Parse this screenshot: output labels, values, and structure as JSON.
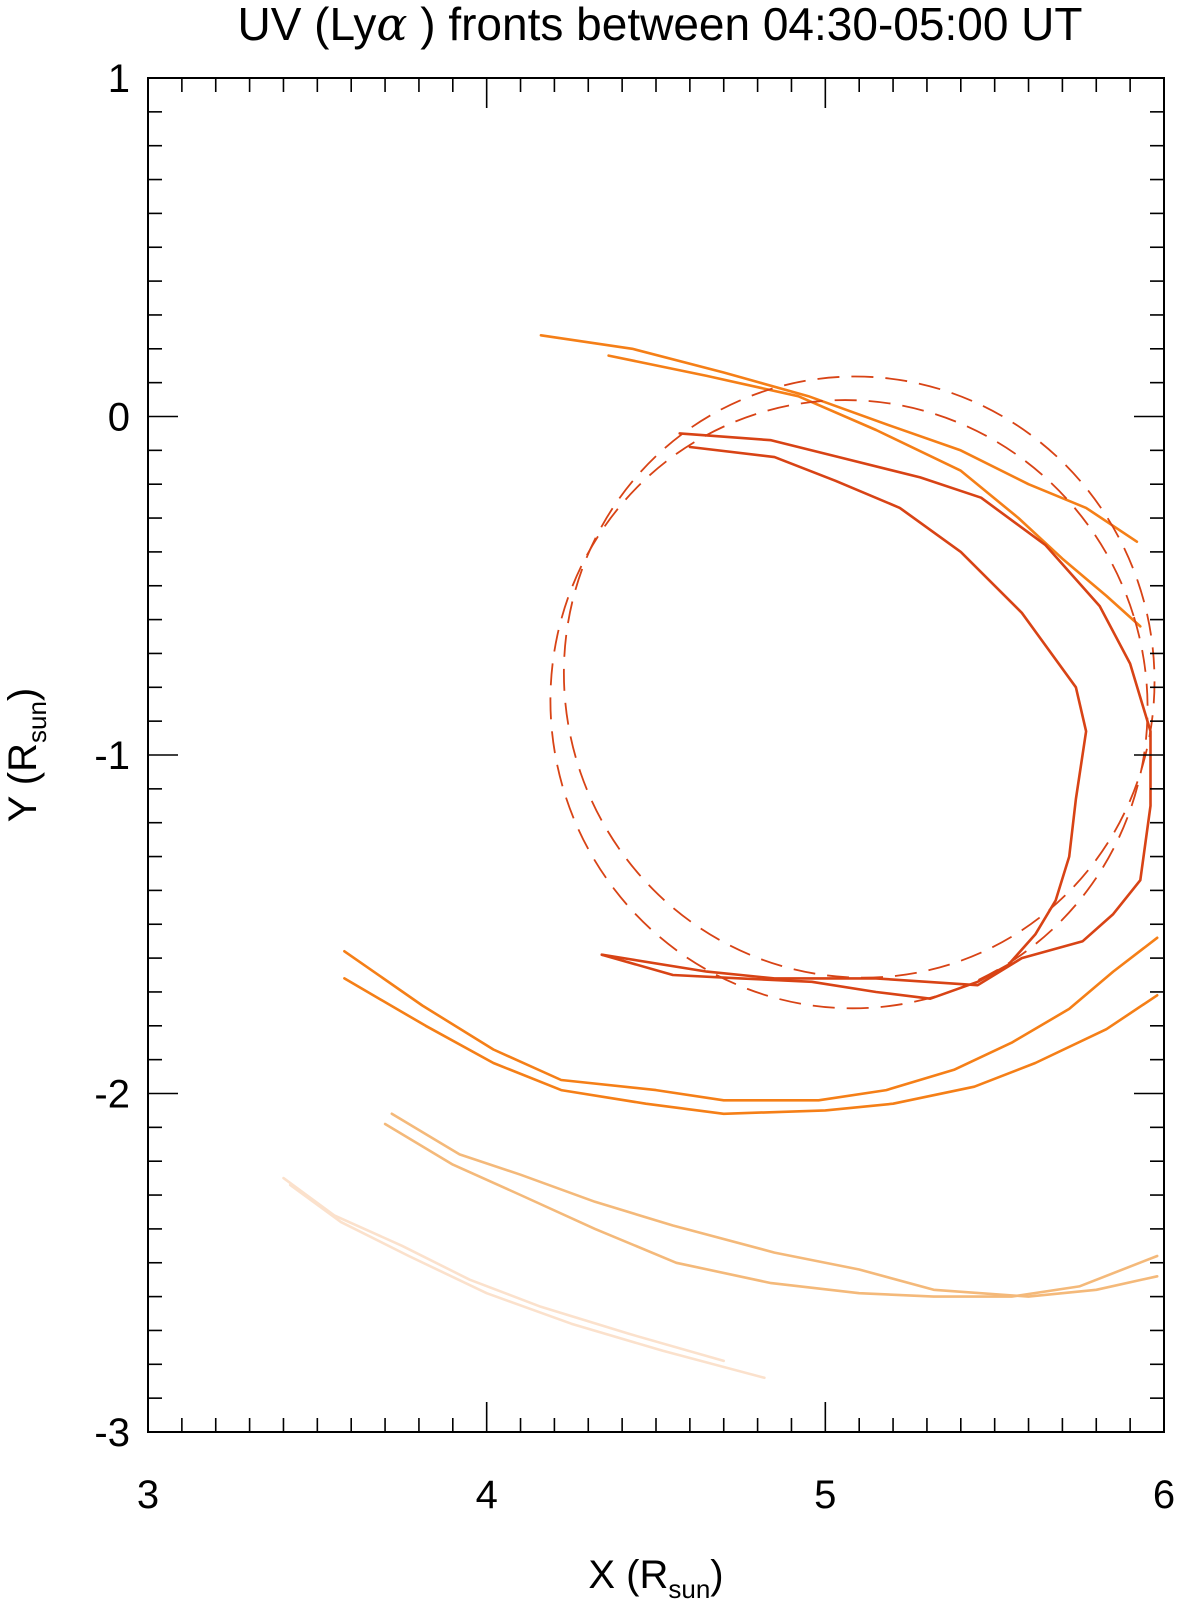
{
  "chart_data": {
    "type": "line",
    "title_pre": "UV (Ly",
    "title_greek": "α",
    "title_post": " ) fronts between 04:30-05:00 UT",
    "xlabel_main": "X (R",
    "xlabel_sub": "sun",
    "xlabel_end": ")",
    "ylabel_main": "Y (R",
    "ylabel_sub": "sun",
    "ylabel_end": ")",
    "xlim": [
      3,
      6
    ],
    "ylim": [
      -3,
      1
    ],
    "x_ticks": [
      3,
      4,
      5,
      6
    ],
    "x_tick_labels": [
      "3",
      "4",
      "5",
      "6"
    ],
    "y_ticks": [
      -3,
      -2,
      -1,
      0,
      1
    ],
    "y_tick_labels": [
      "-3",
      "-2",
      "-1",
      "0",
      "1"
    ],
    "grid": false,
    "colors": {
      "dark": "#d84315",
      "orange": "#f57f17",
      "light": "#f4b97a",
      "faint": "#fbe1cc"
    },
    "series": [
      {
        "color": "#f57f17",
        "dashed": false,
        "points": [
          [
            4.16,
            0.24
          ],
          [
            4.43,
            0.2
          ],
          [
            4.7,
            0.13
          ],
          [
            4.95,
            0.06
          ],
          [
            5.2,
            -0.03
          ],
          [
            5.4,
            -0.1
          ],
          [
            5.6,
            -0.2
          ],
          [
            5.77,
            -0.27
          ],
          [
            5.92,
            -0.37
          ]
        ]
      },
      {
        "color": "#f57f17",
        "dashed": false,
        "points": [
          [
            4.36,
            0.18
          ],
          [
            4.65,
            0.12
          ],
          [
            4.92,
            0.06
          ],
          [
            5.15,
            -0.04
          ],
          [
            5.4,
            -0.16
          ],
          [
            5.57,
            -0.3
          ],
          [
            5.7,
            -0.42
          ],
          [
            5.83,
            -0.53
          ],
          [
            5.93,
            -0.62
          ]
        ]
      },
      {
        "color": "#d84315",
        "dashed": false,
        "points": [
          [
            4.57,
            -0.05
          ],
          [
            4.84,
            -0.07
          ],
          [
            5.04,
            -0.12
          ],
          [
            5.28,
            -0.18
          ],
          [
            5.46,
            -0.24
          ],
          [
            5.65,
            -0.38
          ],
          [
            5.81,
            -0.56
          ],
          [
            5.9,
            -0.73
          ],
          [
            5.96,
            -0.93
          ],
          [
            5.96,
            -1.15
          ],
          [
            5.93,
            -1.37
          ],
          [
            5.85,
            -1.47
          ],
          [
            5.76,
            -1.55
          ],
          [
            5.58,
            -1.6
          ],
          [
            5.45,
            -1.68
          ],
          [
            5.15,
            -1.66
          ],
          [
            4.85,
            -1.66
          ],
          [
            4.65,
            -1.64
          ],
          [
            4.34,
            -1.59
          ]
        ]
      },
      {
        "color": "#d84315",
        "dashed": false,
        "points": [
          [
            4.6,
            -0.09
          ],
          [
            4.85,
            -0.12
          ],
          [
            5.03,
            -0.19
          ],
          [
            5.22,
            -0.27
          ],
          [
            5.4,
            -0.4
          ],
          [
            5.58,
            -0.58
          ],
          [
            5.74,
            -0.8
          ],
          [
            5.77,
            -0.93
          ],
          [
            5.74,
            -1.13
          ],
          [
            5.72,
            -1.3
          ],
          [
            5.68,
            -1.43
          ],
          [
            5.62,
            -1.53
          ],
          [
            5.54,
            -1.62
          ],
          [
            5.45,
            -1.67
          ],
          [
            5.31,
            -1.72
          ],
          [
            5.15,
            -1.7
          ],
          [
            4.96,
            -1.67
          ],
          [
            4.75,
            -1.66
          ],
          [
            4.55,
            -1.65
          ],
          [
            4.34,
            -1.59
          ]
        ]
      },
      {
        "color": "#f57f17",
        "dashed": false,
        "points": [
          [
            3.58,
            -1.66
          ],
          [
            3.82,
            -1.8
          ],
          [
            4.02,
            -1.91
          ],
          [
            4.22,
            -1.99
          ],
          [
            4.47,
            -2.03
          ],
          [
            4.7,
            -2.06
          ],
          [
            5.0,
            -2.05
          ],
          [
            5.2,
            -2.03
          ],
          [
            5.44,
            -1.98
          ],
          [
            5.62,
            -1.91
          ],
          [
            5.83,
            -1.81
          ],
          [
            5.98,
            -1.71
          ]
        ]
      },
      {
        "color": "#f57f17",
        "dashed": false,
        "points": [
          [
            3.58,
            -1.58
          ],
          [
            3.81,
            -1.74
          ],
          [
            4.02,
            -1.87
          ],
          [
            4.22,
            -1.96
          ],
          [
            4.5,
            -1.99
          ],
          [
            4.7,
            -2.02
          ],
          [
            4.98,
            -2.02
          ],
          [
            5.18,
            -1.99
          ],
          [
            5.38,
            -1.93
          ],
          [
            5.55,
            -1.85
          ],
          [
            5.72,
            -1.75
          ],
          [
            5.85,
            -1.64
          ],
          [
            5.98,
            -1.54
          ]
        ]
      },
      {
        "color": "#f4b97a",
        "dashed": false,
        "points": [
          [
            3.72,
            -2.06
          ],
          [
            3.92,
            -2.18
          ],
          [
            4.1,
            -2.24
          ],
          [
            4.32,
            -2.32
          ],
          [
            4.55,
            -2.39
          ],
          [
            4.85,
            -2.47
          ],
          [
            5.1,
            -2.52
          ],
          [
            5.32,
            -2.58
          ],
          [
            5.6,
            -2.6
          ],
          [
            5.8,
            -2.58
          ],
          [
            5.98,
            -2.54
          ]
        ]
      },
      {
        "color": "#f4b97a",
        "dashed": false,
        "points": [
          [
            3.7,
            -2.09
          ],
          [
            3.9,
            -2.21
          ],
          [
            4.1,
            -2.3
          ],
          [
            4.32,
            -2.4
          ],
          [
            4.56,
            -2.5
          ],
          [
            4.84,
            -2.56
          ],
          [
            5.1,
            -2.59
          ],
          [
            5.32,
            -2.6
          ],
          [
            5.55,
            -2.6
          ],
          [
            5.75,
            -2.57
          ],
          [
            5.98,
            -2.48
          ]
        ]
      },
      {
        "color": "#fbe1cc",
        "dashed": false,
        "points": [
          [
            3.4,
            -2.25
          ],
          [
            3.55,
            -2.36
          ],
          [
            3.75,
            -2.45
          ],
          [
            3.95,
            -2.55
          ],
          [
            4.16,
            -2.63
          ],
          [
            4.42,
            -2.71
          ],
          [
            4.7,
            -2.79
          ]
        ]
      },
      {
        "color": "#fbe1cc",
        "dashed": false,
        "points": [
          [
            3.42,
            -2.27
          ],
          [
            3.57,
            -2.38
          ],
          [
            3.77,
            -2.48
          ],
          [
            4.0,
            -2.59
          ],
          [
            4.25,
            -2.68
          ],
          [
            4.52,
            -2.76
          ],
          [
            4.82,
            -2.84
          ]
        ]
      }
    ],
    "ellipses": [
      {
        "color": "#d84315",
        "dashed": true,
        "cx": 5.1,
        "cy": -0.77,
        "rx": 0.87,
        "ry": 0.89,
        "rotation_deg": -19
      },
      {
        "color": "#d84315",
        "dashed": true,
        "cx": 5.07,
        "cy": -0.85,
        "rx": 0.88,
        "ry": 0.9,
        "rotation_deg": -17
      }
    ]
  }
}
